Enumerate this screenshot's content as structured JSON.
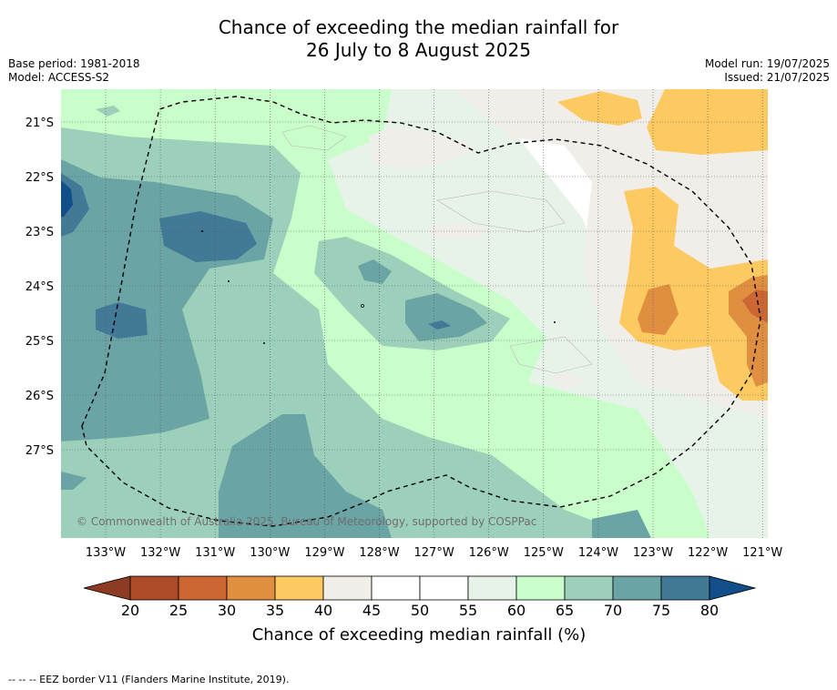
{
  "title": {
    "line1": "Chance of exceeding the median rainfall for",
    "line2": "26 July to 8 August 2025"
  },
  "meta_left": {
    "base_period": "Base period: 1981-2018",
    "model": "Model: ACCESS-S2"
  },
  "meta_right": {
    "model_run": "Model run: 19/07/2025",
    "issued": "Issued: 21/07/2025"
  },
  "map": {
    "lat_labels": [
      "21°S",
      "22°S",
      "23°S",
      "24°S",
      "25°S",
      "26°S",
      "27°S"
    ],
    "lon_labels": [
      "133°W",
      "132°W",
      "131°W",
      "130°W",
      "129°W",
      "128°W",
      "127°W",
      "126°W",
      "125°W",
      "124°W",
      "123°W",
      "122°W",
      "121°W"
    ],
    "copyright": "© Commonwealth of Australia 2025, Bureau of Meteorology, supported by COSPPac",
    "lon_range": [
      -133.8,
      -120.9
    ],
    "lat_range": [
      -28.6,
      -20.4
    ]
  },
  "colorbar": {
    "ticks": [
      "20",
      "25",
      "30",
      "35",
      "40",
      "45",
      "50",
      "55",
      "60",
      "65",
      "70",
      "75",
      "80"
    ],
    "label": "Chance of exceeding median rainfall (%)",
    "colors": {
      "below_20": "#8e3b23",
      "20-25": "#ad4a27",
      "25-30": "#cc6633",
      "30-35": "#e08f40",
      "35-40": "#fdc961",
      "40-45": "#f1eeea",
      "45-50": "#ffffff",
      "50-55": "#ffffff",
      "55-60": "#e7f3e9",
      "60-65": "#c9fdca",
      "65-70": "#9dd0ba",
      "70-75": "#6ba4a5",
      "75-80": "#427996",
      "above_80": "#124e8a"
    }
  },
  "footnote": "-- -- -- EEZ border V11 (Flanders Marine Institute, 2019)."
}
